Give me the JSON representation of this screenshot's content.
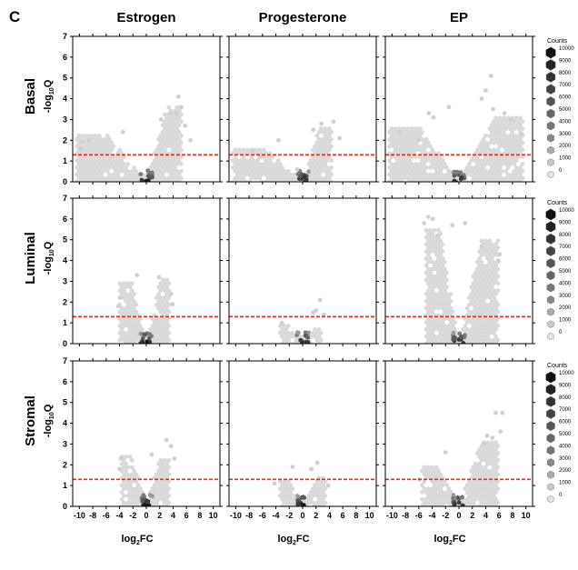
{
  "figure": {
    "panel_letter": "C",
    "columns": [
      "Estrogen",
      "Progesterone",
      "EP"
    ],
    "rows": [
      "Basal",
      "Luminal",
      "Stromal"
    ]
  },
  "chart_data": {
    "type": "hexbin-volcano",
    "xlabel_base": "log",
    "xlabel_sub": "2",
    "xlabel_tail": "FC",
    "ylabel_prefix": "-log",
    "ylabel_sub": "10",
    "ylabel_tail": "Q",
    "xlim": [
      -11,
      11
    ],
    "ylim": [
      0,
      7
    ],
    "xticks": [
      -10,
      -8,
      -6,
      -4,
      -2,
      0,
      2,
      4,
      6,
      8,
      10
    ],
    "yticks": [
      0,
      1,
      2,
      3,
      4,
      5,
      6,
      7
    ],
    "threshold_y": 1.3,
    "threshold_color": "#e0301e",
    "legend": {
      "title": "Counts",
      "values": [
        10000,
        9000,
        8000,
        7000,
        6000,
        5000,
        4000,
        3000,
        2000,
        1000,
        0
      ]
    },
    "panels": [
      {
        "row": "Basal",
        "col": "Estrogen",
        "left_xmin": -10.5,
        "left_ymax": 2.3,
        "right_xmax": 5.5,
        "right_ymax": 3.6,
        "outliers": [
          [
            4.8,
            4.1
          ],
          [
            5.2,
            3.6
          ],
          [
            4.5,
            3.3
          ],
          [
            5.8,
            2.7
          ],
          [
            -9.5,
            1.9
          ],
          [
            -8.5,
            2.0
          ],
          [
            -9.8,
            1.6
          ],
          [
            6.6,
            2.0
          ],
          [
            -3.5,
            2.4
          ],
          [
            2.2,
            3.0
          ],
          [
            3.6,
            3.3
          ]
        ]
      },
      {
        "row": "Basal",
        "col": "Progesterone",
        "left_xmin": -10.5,
        "left_ymax": 1.7,
        "right_xmax": 4.5,
        "right_ymax": 2.7,
        "outliers": [
          [
            -7.5,
            1.5
          ],
          [
            -6.2,
            1.2
          ],
          [
            1.6,
            2.5
          ],
          [
            2.8,
            2.8
          ],
          [
            4.6,
            2.9
          ],
          [
            -3.6,
            2.0
          ],
          [
            5.5,
            2.1
          ],
          [
            -0.8,
            0.6
          ]
        ]
      },
      {
        "row": "Basal",
        "col": "EP",
        "left_xmin": -10.5,
        "left_ymax": 2.6,
        "right_xmax": 9.5,
        "right_ymax": 3.2,
        "outliers": [
          [
            4.8,
            5.1
          ],
          [
            4.0,
            4.4
          ],
          [
            3.4,
            4.0
          ],
          [
            5.1,
            3.5
          ],
          [
            -4.5,
            3.3
          ],
          [
            -3.8,
            3.1
          ],
          [
            -8.9,
            2.4
          ],
          [
            -6.0,
            2.0
          ],
          [
            -1.5,
            3.6
          ],
          [
            6.8,
            3.3
          ],
          [
            7.8,
            3.0
          ],
          [
            9.4,
            2.3
          ]
        ]
      },
      {
        "row": "Luminal",
        "col": "Estrogen",
        "left_xmin": -4.0,
        "left_ymax": 3.0,
        "right_xmax": 3.5,
        "right_ymax": 3.1,
        "outliers": [
          [
            -3.9,
            2.2
          ],
          [
            -4.2,
            1.8
          ],
          [
            3.7,
            2.4
          ],
          [
            3.9,
            1.9
          ],
          [
            -1.4,
            3.3
          ],
          [
            1.9,
            3.2
          ]
        ]
      },
      {
        "row": "Luminal",
        "col": "Progesterone",
        "left_xmin": -3.6,
        "left_ymax": 0.9,
        "right_xmax": 3.0,
        "right_ymax": 0.8,
        "outliers": [
          [
            2.6,
            2.1
          ],
          [
            2.0,
            1.6
          ],
          [
            1.6,
            1.5
          ],
          [
            -3.1,
            1.0
          ],
          [
            3.2,
            1.4
          ]
        ]
      },
      {
        "row": "Luminal",
        "col": "EP",
        "left_xmin": -5.0,
        "left_ymax": 5.5,
        "right_xmax": 6.0,
        "right_ymax": 5.0,
        "outliers": [
          [
            -5.2,
            5.8
          ],
          [
            -4.6,
            6.1
          ],
          [
            -3.9,
            6.0
          ],
          [
            6.1,
            4.3
          ],
          [
            5.9,
            4.0
          ],
          [
            -1.0,
            5.7
          ],
          [
            0.9,
            5.8
          ],
          [
            3.4,
            4.7
          ],
          [
            -3.2,
            5.2
          ]
        ]
      },
      {
        "row": "Stromal",
        "col": "Estrogen",
        "left_xmin": -3.8,
        "left_ymax": 2.4,
        "right_xmax": 3.5,
        "right_ymax": 2.3,
        "outliers": [
          [
            3.0,
            3.2
          ],
          [
            3.7,
            2.9
          ],
          [
            4.2,
            2.3
          ],
          [
            -3.8,
            2.3
          ],
          [
            0.8,
            2.5
          ],
          [
            -4.0,
            1.8
          ]
        ]
      },
      {
        "row": "Stromal",
        "col": "Progesterone",
        "left_xmin": -3.6,
        "left_ymax": 1.3,
        "right_xmax": 3.5,
        "right_ymax": 1.4,
        "outliers": [
          [
            2.2,
            2.1
          ],
          [
            1.3,
            1.8
          ],
          [
            -1.5,
            1.9
          ],
          [
            -4.2,
            1.1
          ],
          [
            3.8,
            1.0
          ]
        ]
      },
      {
        "row": "Stromal",
        "col": "EP",
        "left_xmin": -5.5,
        "left_ymax": 2.0,
        "right_xmax": 6.0,
        "right_ymax": 3.1,
        "outliers": [
          [
            5.5,
            4.5
          ],
          [
            6.5,
            4.5
          ],
          [
            6.2,
            3.6
          ],
          [
            3.8,
            3.0
          ],
          [
            5.0,
            3.3
          ],
          [
            -5.9,
            1.3
          ],
          [
            -2.0,
            2.6
          ],
          [
            4.2,
            3.4
          ]
        ]
      }
    ]
  }
}
